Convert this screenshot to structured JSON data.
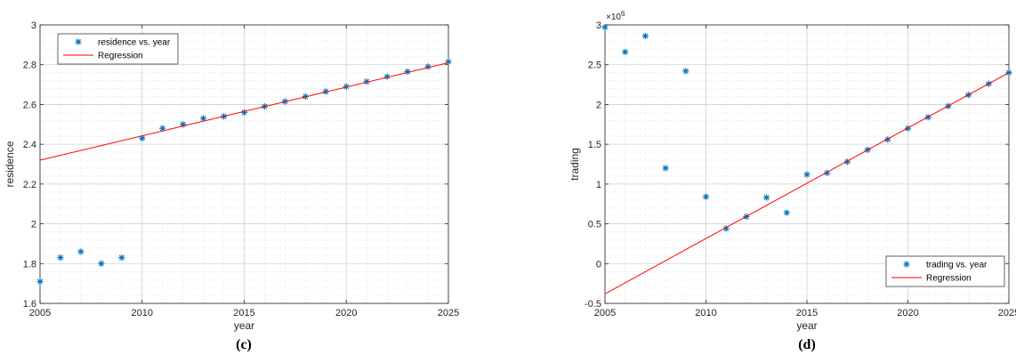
{
  "chart_data": [
    {
      "type": "scatter",
      "caption": "(c)",
      "xlabel": "year",
      "ylabel": "residence",
      "xlim": [
        2005,
        2025
      ],
      "ylim": [
        1.6,
        3.0
      ],
      "xticks": [
        "2005",
        "2010",
        "2015",
        "2020",
        "2025"
      ],
      "yticks": [
        "1.6",
        "1.8",
        "2",
        "2.2",
        "2.4",
        "2.6",
        "2.8",
        "3"
      ],
      "grid": true,
      "legend_position": "top-left",
      "series": [
        {
          "name": "residence vs. year",
          "kind": "scatter",
          "marker": "asterisk",
          "color": "#0072BD",
          "x": [
            2005,
            2006,
            2007,
            2008,
            2009,
            2010,
            2011,
            2012,
            2013,
            2014,
            2015,
            2016,
            2017,
            2018,
            2019,
            2020,
            2021,
            2022,
            2023,
            2024,
            2025
          ],
          "y": [
            1.71,
            1.83,
            1.86,
            1.8,
            1.83,
            2.43,
            2.48,
            2.5,
            2.53,
            2.54,
            2.56,
            2.59,
            2.615,
            2.64,
            2.665,
            2.69,
            2.715,
            2.74,
            2.765,
            2.79,
            2.815
          ]
        },
        {
          "name": "Regression",
          "kind": "line",
          "color": "#FF0000",
          "x": [
            2005,
            2025
          ],
          "y": [
            2.32,
            2.81
          ]
        }
      ]
    },
    {
      "type": "scatter",
      "caption": "(d)",
      "xlabel": "year",
      "ylabel": "trading",
      "exponent_label": "×10",
      "exponent_power": "6",
      "xlim": [
        2005,
        2025
      ],
      "ylim": [
        -0.5,
        3.0
      ],
      "xticks": [
        "2005",
        "2010",
        "2015",
        "2020",
        "2025"
      ],
      "yticks": [
        "-0.5",
        "0",
        "0.5",
        "1",
        "1.5",
        "2",
        "2.5",
        "3"
      ],
      "grid": true,
      "legend_position": "bottom-right",
      "series": [
        {
          "name": "trading vs. year",
          "kind": "scatter",
          "marker": "asterisk",
          "color": "#0072BD",
          "x": [
            2005,
            2006,
            2007,
            2008,
            2009,
            2010,
            2011,
            2012,
            2013,
            2014,
            2015,
            2016,
            2017,
            2018,
            2019,
            2020,
            2021,
            2022,
            2023,
            2024,
            2025
          ],
          "y": [
            2.97,
            2.66,
            2.86,
            1.2,
            2.42,
            0.84,
            0.44,
            0.59,
            0.83,
            0.64,
            1.12,
            1.14,
            1.28,
            1.43,
            1.56,
            1.7,
            1.84,
            1.98,
            2.12,
            2.26,
            2.4
          ]
        },
        {
          "name": "Regression",
          "kind": "line",
          "color": "#FF0000",
          "x": [
            2005,
            2025
          ],
          "y": [
            -0.38,
            2.4
          ]
        }
      ]
    }
  ]
}
